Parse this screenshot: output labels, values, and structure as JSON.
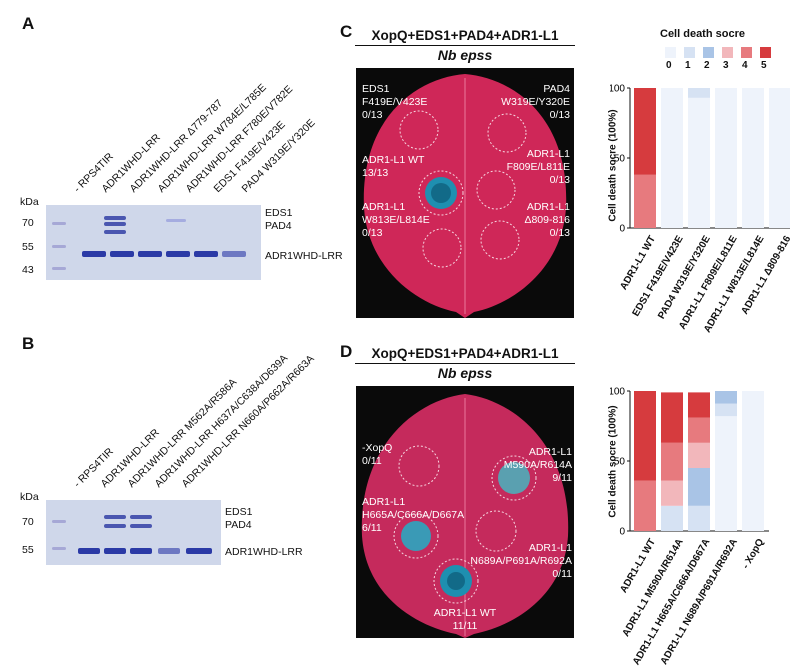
{
  "panels": {
    "A": {
      "label": "A",
      "kda_label": "kDa",
      "markers": [
        "70",
        "55",
        "43"
      ],
      "lanes": [
        "- RPS4TIR",
        "ADR1WHD-LRR",
        "ADR1WHD-LRR Δ779-787",
        "ADR1WHD-LRR W784E/L785E",
        "ADR1WHD-LRR F780E/V782E",
        "EDS1 F419E/V423E",
        "PAD4 W319E/Y320E"
      ],
      "bands": [
        "EDS1",
        "PAD4",
        "ADR1WHD-LRR"
      ]
    },
    "B": {
      "label": "B",
      "kda_label": "kDa",
      "markers": [
        "70",
        "55"
      ],
      "lanes": [
        "- RPS4TIR",
        "ADR1WHD-LRR",
        "ADR1WHD-LRR M562A/R586A",
        "ADR1WHD-LRR H637A/C638A/D639A",
        "ADR1WHD-LRR N660A/P662A/R663A"
      ],
      "bands": [
        "EDS1",
        "PAD4",
        "ADR1WHD-LRR"
      ]
    },
    "C": {
      "label": "C",
      "title": "XopQ+EDS1+PAD4+ADR1-L1",
      "subtitle": "Nb epss",
      "leaf_labels": [
        {
          "line1": "EDS1",
          "line2": "F419E/V423E",
          "line3": "0/13"
        },
        {
          "line1": "PAD4",
          "line2": "W319E/Y320E",
          "line3": "0/13"
        },
        {
          "line1": "ADR1-L1 WT",
          "line2": "13/13",
          "line3": ""
        },
        {
          "line1": "ADR1-L1",
          "line2": "F809E/L811E",
          "line3": "0/13"
        },
        {
          "line1": "ADR1-L1",
          "line2": "W813E/L814E",
          "line3": "0/13"
        },
        {
          "line1": "ADR1-L1",
          "line2": "Δ809-816",
          "line3": "0/13"
        }
      ]
    },
    "D": {
      "label": "D",
      "title": "XopQ+EDS1+PAD4+ADR1-L1",
      "subtitle": "Nb epss",
      "leaf_labels": [
        {
          "line1": "-XopQ",
          "line2": "0/11",
          "line3": ""
        },
        {
          "line1": "ADR1-L1",
          "line2": "M590A/R614A",
          "line3": "9/11"
        },
        {
          "line1": "ADR1-L1",
          "line2": "H665A/C666A/D667A",
          "line3": "6/11"
        },
        {
          "line1": "ADR1-L1",
          "line2": "N689A/P691A/R692A",
          "line3": "0/11"
        },
        {
          "line1": "ADR1-L1 WT",
          "line2": "11/11",
          "line3": ""
        }
      ]
    }
  },
  "legend": {
    "title": "Cell death socre",
    "labels": [
      "0",
      "1",
      "2",
      "3",
      "4",
      "5"
    ],
    "colors": [
      "#eef3fb",
      "#d6e2f3",
      "#a9c4e6",
      "#f2b7bb",
      "#e77a7e",
      "#d63b3e"
    ]
  },
  "chart_data": [
    {
      "type": "bar",
      "stacked": true,
      "ylabel": "Cell death socre (100%)",
      "ylim": [
        0,
        100
      ],
      "yticks": [
        "0",
        "50",
        "100"
      ],
      "categories": [
        "ADR1-L1 WT",
        "EDS1 F419E/V423E",
        "PAD4 W319E/Y320E",
        "ADR1-L1 F809E/L811E",
        "ADR1-L1 W813E/L814E",
        "ADR1-L1 Δ809-816"
      ],
      "series": [
        {
          "name": "0",
          "values": [
            0,
            100,
            93,
            100,
            100,
            100
          ]
        },
        {
          "name": "1",
          "values": [
            0,
            0,
            7,
            0,
            0,
            0
          ]
        },
        {
          "name": "2",
          "values": [
            0,
            0,
            0,
            0,
            0,
            0
          ]
        },
        {
          "name": "3",
          "values": [
            0,
            0,
            0,
            0,
            0,
            0
          ]
        },
        {
          "name": "4",
          "values": [
            38,
            0,
            0,
            0,
            0,
            0
          ]
        },
        {
          "name": "5",
          "values": [
            62,
            0,
            0,
            0,
            0,
            0
          ]
        }
      ]
    },
    {
      "type": "bar",
      "stacked": true,
      "ylabel": "Cell death socre (100%)",
      "ylim": [
        0,
        100
      ],
      "yticks": [
        "0",
        "50",
        "100"
      ],
      "categories": [
        "ADR1-L1 WT",
        "ADR1-L1 M590A/R614A",
        "ADR1-L1 H665A/C666A/D667A",
        "ADR1-L1 N689A/P691A/R692A",
        "- XopQ"
      ],
      "series": [
        {
          "name": "0",
          "values": [
            0,
            0,
            0,
            82,
            100
          ]
        },
        {
          "name": "1",
          "values": [
            0,
            18,
            18,
            9,
            0
          ]
        },
        {
          "name": "2",
          "values": [
            0,
            0,
            27,
            9,
            0
          ]
        },
        {
          "name": "3",
          "values": [
            0,
            18,
            18,
            0,
            0
          ]
        },
        {
          "name": "4",
          "values": [
            36,
            27,
            18,
            0,
            0
          ]
        },
        {
          "name": "5",
          "values": [
            64,
            36,
            18,
            0,
            0
          ]
        }
      ]
    }
  ]
}
